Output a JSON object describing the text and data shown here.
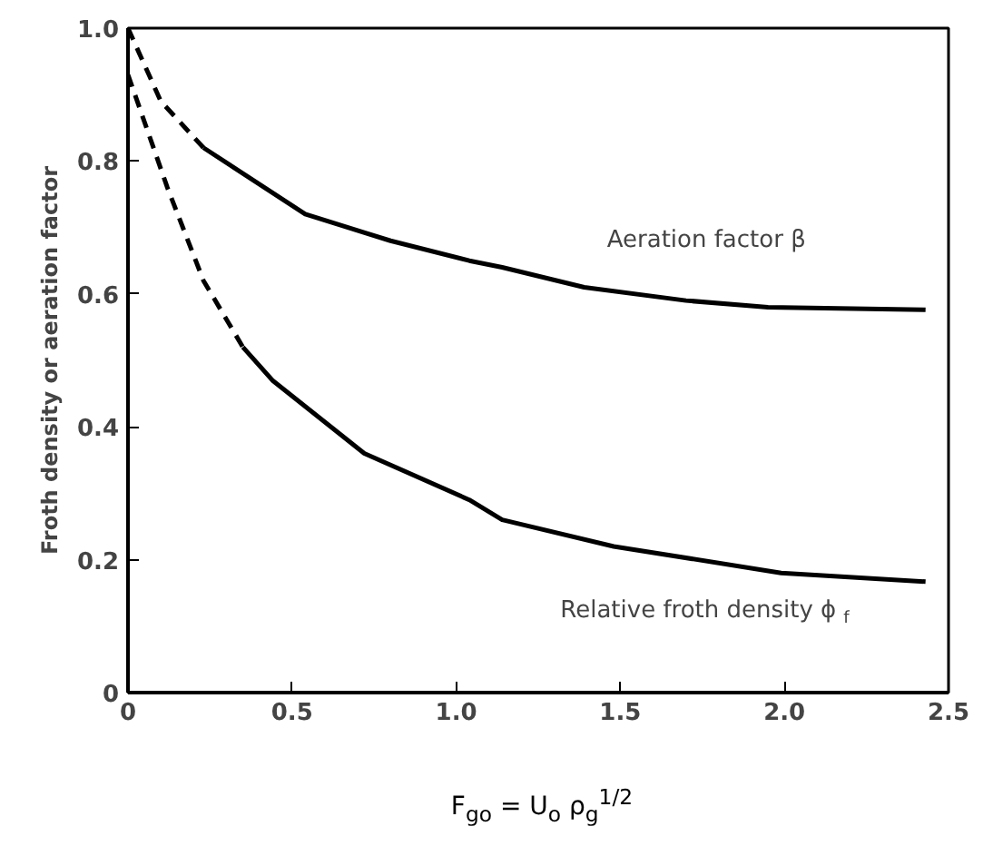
{
  "chart_data": {
    "type": "line",
    "xlabel": "F$_{go}$ = U$_{o}$ ρ$_{g}$$^{1/2}$",
    "ylabel": "Froth density or aeration factor",
    "xlim": [
      0,
      2.5
    ],
    "ylim": [
      0,
      1.0
    ],
    "xticks": [
      0,
      0.5,
      {
        "value": 1,
        "label": "1.0"
      },
      1.5,
      {
        "value": 2,
        "label": "2.0"
      },
      2.5
    ],
    "yticks": [
      0,
      0.2,
      0.4,
      0.6,
      0.8,
      {
        "value": 1,
        "label": "1.0"
      }
    ],
    "grid": false,
    "series": [
      {
        "color": "#000000",
        "line_style": "dashed",
        "x": [
          0,
          0.1,
          0.23
        ],
        "values": [
          1.0,
          0.89,
          0.82
        ]
      },
      {
        "name": "Aeration factor β",
        "color": "#000000",
        "line_style": "solid",
        "x": [
          0.23,
          0.54,
          0.8,
          1.04,
          1.14,
          1.39,
          1.7,
          1.95,
          2.43
        ],
        "values": [
          0.82,
          0.72,
          0.68,
          0.65,
          0.64,
          0.61,
          0.59,
          0.58,
          0.576
        ]
      },
      {
        "color": "#000000",
        "line_style": "dashed",
        "x": [
          0,
          0.12,
          0.23,
          0.35
        ],
        "values": [
          0.93,
          0.76,
          0.62,
          0.52
        ]
      },
      {
        "name": "Relative froth density ϕ$_{f}$",
        "color": "#000000",
        "line_style": "solid",
        "x": [
          0.35,
          0.44,
          0.72,
          1.04,
          1.14,
          1.48,
          1.99,
          2.43
        ],
        "values": [
          0.52,
          0.47,
          0.36,
          0.29,
          0.26,
          0.22,
          0.18,
          0.167
        ]
      }
    ]
  }
}
